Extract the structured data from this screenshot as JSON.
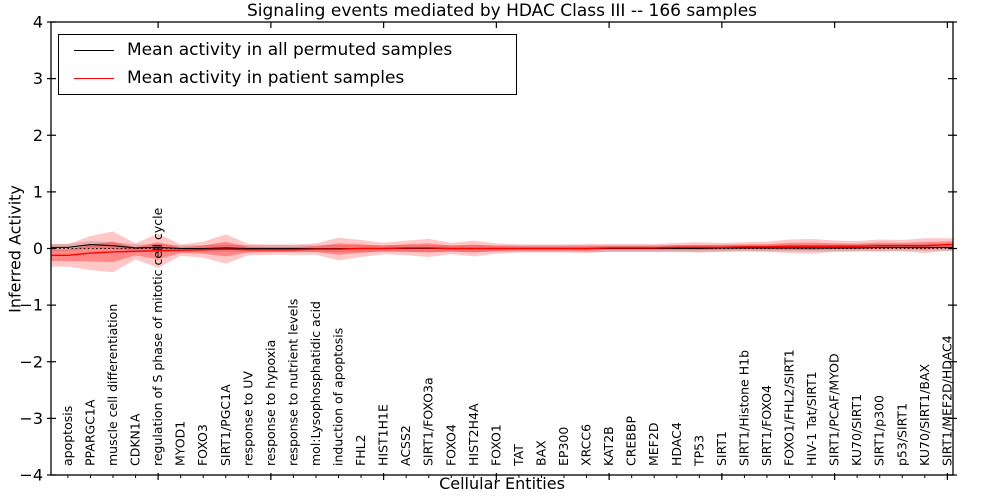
{
  "chart_data": {
    "type": "line",
    "title": "Signaling events mediated by HDAC Class III -- 166 samples",
    "xlabel": "Cellular Entities",
    "ylabel": "Inferred Activity",
    "ylim": [
      -4,
      4
    ],
    "yticks": [
      -4,
      -3,
      -2,
      -1,
      0,
      1,
      2,
      3,
      4
    ],
    "x_major_tick_every": 5,
    "grid": false,
    "zero_line": "dotted-black",
    "legend_position": "upper left",
    "background": "#ffffff",
    "categories": [
      "apoptosis",
      "PPARGC1A",
      "muscle cell differentiation",
      "CDKN1A",
      "regulation of S phase of mitotic cell cycle",
      "MYOD1",
      "FOXO3",
      "SIRT1/PGC1A",
      "response to UV",
      "response to hypoxia",
      "response to nutrient levels",
      "mol:Lysophosphatidic acid",
      "induction of apoptosis",
      "FHL2",
      "HIST1H1E",
      "ACSS2",
      "SIRT1/FOXO3a",
      "FOXO4",
      "HIST2H4A",
      "FOXO1",
      "TAT",
      "BAX",
      "EP300",
      "XRCC6",
      "KAT2B",
      "CREBBP",
      "MEF2D",
      "HDAC4",
      "TP53",
      "SIRT1",
      "SIRT1/Histone H1b",
      "SIRT1/FOXO4",
      "FOXO1/FHL2/SIRT1",
      "HIV-1 Tat/SIRT1",
      "SIRT1/PCAF/MYOD",
      "KU70/SIRT1",
      "SIRT1/p300",
      "p53/SIRT1",
      "KU70/SIRT1/BAX",
      "SIRT1/MEF2D/HDAC4"
    ],
    "series": [
      {
        "name": "Mean activity in all permuted samples",
        "color": "#000000",
        "values": [
          0.02,
          0.07,
          0.05,
          0.01,
          0.02,
          0,
          0,
          0.01,
          0,
          0,
          0,
          0,
          0,
          0,
          0,
          0,
          0,
          0,
          0,
          0,
          0,
          0,
          0,
          0,
          0,
          0,
          0,
          0,
          0,
          0.01,
          0.01,
          0.01,
          0.01,
          0.01,
          0.01,
          0.01,
          0.02,
          0.02,
          0.02,
          0.02
        ]
      },
      {
        "name": "Mean activity in patient samples",
        "color": "#ff0000",
        "values": [
          -0.12,
          -0.08,
          -0.06,
          -0.05,
          -0.04,
          -0.03,
          -0.02,
          -0.01,
          -0.02,
          -0.02,
          -0.02,
          -0.01,
          -0.01,
          0,
          0,
          0.01,
          0.01,
          0,
          0,
          0,
          0,
          0,
          0,
          0,
          0.01,
          0.01,
          0.01,
          0.02,
          0.02,
          0.02,
          0.03,
          0.03,
          0.04,
          0.04,
          0.04,
          0.04,
          0.05,
          0.05,
          0.05,
          0.07
        ]
      }
    ],
    "bands": [
      {
        "series": "Mean activity in all permuted samples",
        "color": "#808080",
        "opacity": 0.28,
        "halfwidth": 0.06
      },
      {
        "series": "Mean activity in patient samples",
        "color": "#ff0000",
        "opacity": 0.22,
        "inner_opacity": 0.32,
        "halfwidths": [
          0.2,
          0.3,
          0.36,
          0.14,
          0.3,
          0.1,
          0.14,
          0.26,
          0.1,
          0.09,
          0.09,
          0.1,
          0.2,
          0.15,
          0.1,
          0.13,
          0.16,
          0.1,
          0.14,
          0.09,
          0.07,
          0.07,
          0.07,
          0.08,
          0.07,
          0.07,
          0.07,
          0.08,
          0.09,
          0.08,
          0.08,
          0.09,
          0.12,
          0.13,
          0.1,
          0.09,
          0.11,
          0.1,
          0.13,
          0.11
        ]
      }
    ]
  }
}
